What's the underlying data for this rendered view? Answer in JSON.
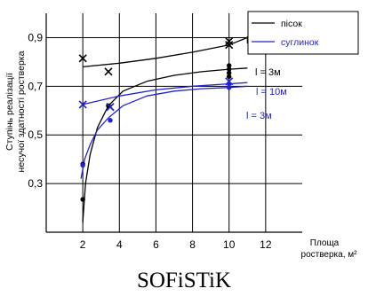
{
  "chart_data": {
    "type": "line",
    "title": "",
    "ylabel_line1": "Ступінь реалізації",
    "ylabel_line2": "несучої здатності ростверка",
    "xlabel_line1": "Площа",
    "xlabel_line2": "ростверка, м²",
    "xlim": [
      0,
      14
    ],
    "ylim": [
      0.1,
      1.0
    ],
    "x_ticks": [
      2,
      4,
      6,
      8,
      10,
      12
    ],
    "y_ticks": [
      0.3,
      0.5,
      0.7,
      0.9
    ],
    "y_tick_labels": [
      "0,3",
      "0,5",
      "0,7",
      "0,9"
    ],
    "grid": true,
    "legend_position": "top-right",
    "legend": [
      {
        "label": "пісок",
        "color": "#000000"
      },
      {
        "label": "суглинок",
        "color": "#2222cc"
      }
    ],
    "series": [
      {
        "group": "пісок",
        "color": "#000000",
        "x": [
          2.0,
          2.15,
          2.4,
          2.8,
          3.4,
          4.2,
          5.5,
          7.0,
          8.5,
          10.0,
          11.0
        ],
        "y": [
          0.14,
          0.3,
          0.42,
          0.53,
          0.62,
          0.68,
          0.72,
          0.745,
          0.76,
          0.77,
          0.775
        ]
      },
      {
        "group": "пісок",
        "color": "#000000",
        "x": [
          2.0,
          4.0,
          6.0,
          8.0,
          10.0,
          11.0
        ],
        "y": [
          0.78,
          0.795,
          0.815,
          0.84,
          0.87,
          0.9
        ]
      },
      {
        "group": "суглинок",
        "color": "#2222cc",
        "x": [
          1.9,
          2.1,
          2.4,
          2.8,
          3.4,
          4.2,
          5.5,
          7.0,
          8.5,
          10.0,
          11.0
        ],
        "y": [
          0.32,
          0.4,
          0.46,
          0.52,
          0.57,
          0.62,
          0.66,
          0.68,
          0.69,
          0.695,
          0.7
        ]
      },
      {
        "group": "суглинок",
        "color": "#2222cc",
        "x": [
          2.0,
          4.0,
          6.0,
          8.0,
          10.0,
          11.0
        ],
        "y": [
          0.625,
          0.66,
          0.685,
          0.7,
          0.71,
          0.715
        ]
      }
    ],
    "markers": [
      {
        "x": 2.0,
        "y": 0.815,
        "shape": "x",
        "color": "#000000"
      },
      {
        "x": 3.4,
        "y": 0.76,
        "shape": "x",
        "color": "#000000"
      },
      {
        "x": 3.5,
        "y": 0.615,
        "shape": "x",
        "color": "#000000"
      },
      {
        "x": 10.0,
        "y": 0.87,
        "shape": "x",
        "color": "#000000"
      },
      {
        "x": 10.0,
        "y": 0.885,
        "shape": "x",
        "color": "#000000"
      },
      {
        "x": 2.0,
        "y": 0.235,
        "shape": "dot",
        "color": "#000000"
      },
      {
        "x": 2.0,
        "y": 0.38,
        "shape": "dot",
        "color": "#000000"
      },
      {
        "x": 3.4,
        "y": 0.62,
        "shape": "dot",
        "color": "#000000"
      },
      {
        "x": 10.0,
        "y": 0.785,
        "shape": "dot",
        "color": "#000000"
      },
      {
        "x": 10.0,
        "y": 0.77,
        "shape": "dot",
        "color": "#000000"
      },
      {
        "x": 10.0,
        "y": 0.755,
        "shape": "dot",
        "color": "#000000"
      },
      {
        "x": 10.0,
        "y": 0.74,
        "shape": "dot",
        "color": "#000000"
      },
      {
        "x": 2.0,
        "y": 0.625,
        "shape": "x",
        "color": "#2222cc"
      },
      {
        "x": 3.5,
        "y": 0.615,
        "shape": "x",
        "color": "#2222cc"
      },
      {
        "x": 10.0,
        "y": 0.72,
        "shape": "x",
        "color": "#2222cc"
      },
      {
        "x": 2.0,
        "y": 0.375,
        "shape": "dot",
        "color": "#2222cc"
      },
      {
        "x": 3.5,
        "y": 0.56,
        "shape": "dot",
        "color": "#2222cc"
      },
      {
        "x": 10.0,
        "y": 0.71,
        "shape": "dot",
        "color": "#2222cc"
      },
      {
        "x": 10.0,
        "y": 0.695,
        "shape": "dot",
        "color": "#2222cc"
      }
    ],
    "annotations": [
      {
        "text": "l = 10м",
        "color": "#000000"
      },
      {
        "text": "l = 3м",
        "color": "#000000"
      },
      {
        "text": "l = 10м",
        "color": "#2222cc"
      },
      {
        "text": "l = 3м",
        "color": "#2222cc"
      }
    ]
  },
  "footer": {
    "text": "SOFiSTiK"
  }
}
